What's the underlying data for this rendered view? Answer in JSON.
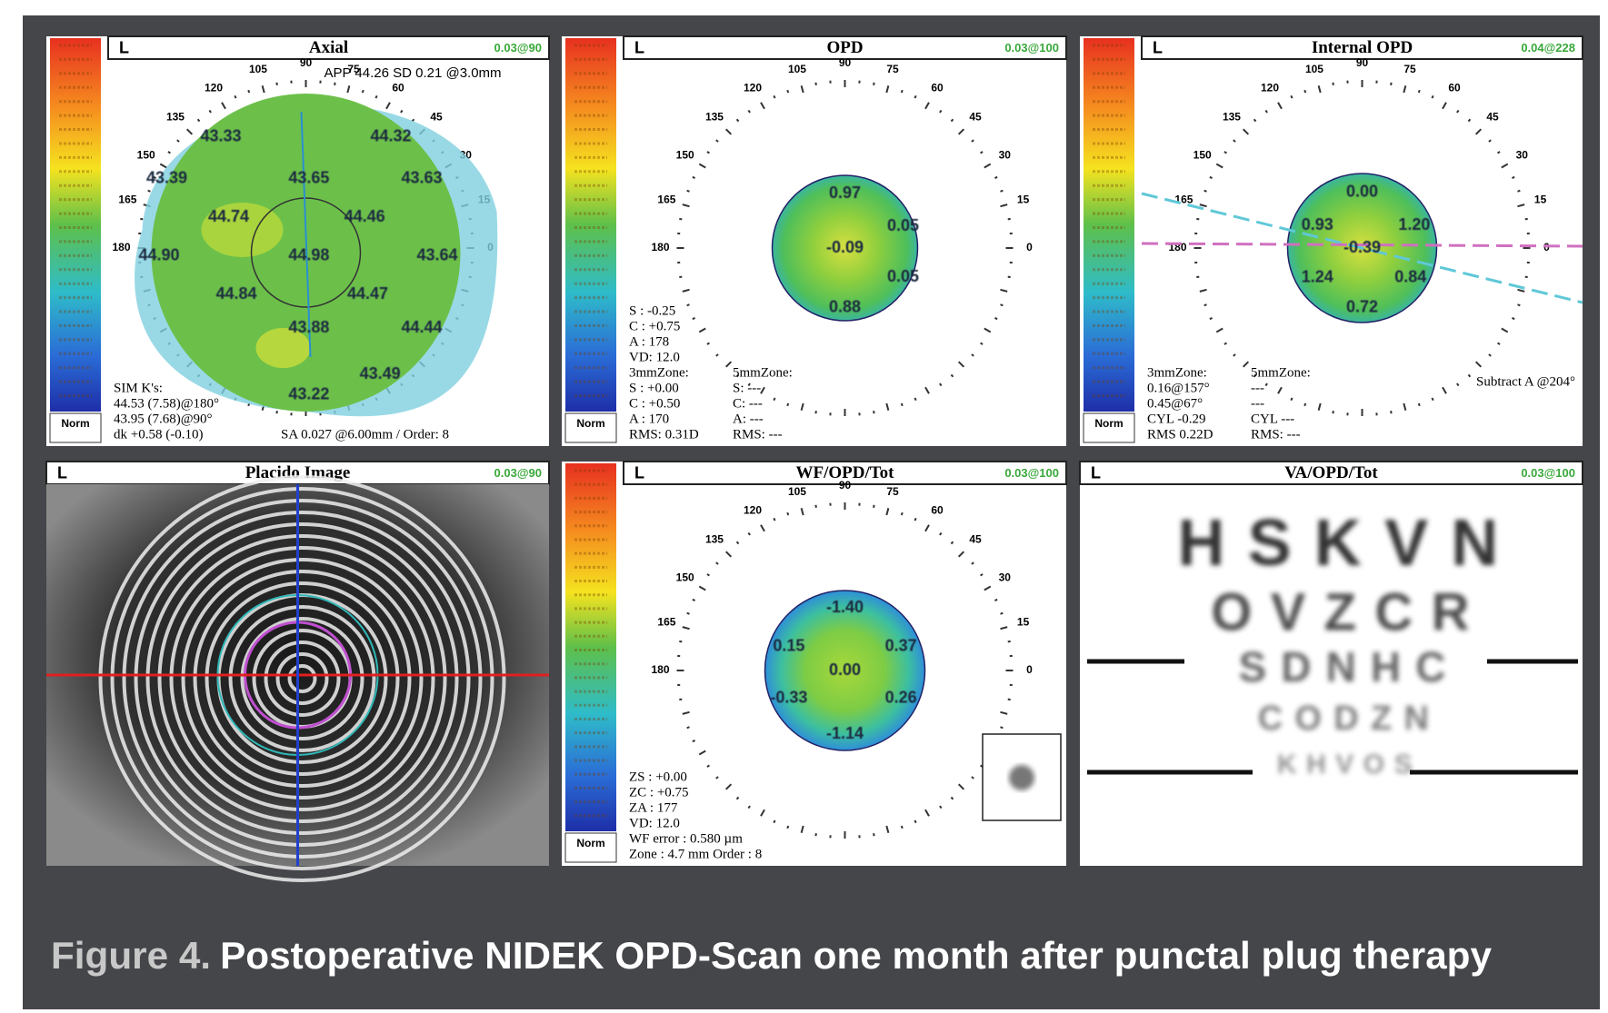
{
  "panels": [
    {
      "eye": "L",
      "title": "Axial",
      "scale": "0.03@90",
      "header_note": "APP 44.26 SD 0.21 @3.0mm",
      "map_values": [
        "43.33",
        "44.32",
        "43.39",
        "43.65",
        "43.63",
        "44.74",
        "44.46",
        "44.90",
        "44.98",
        "43.64",
        "44.84",
        "44.47",
        "43.88",
        "44.44",
        "43.49",
        "43.22"
      ],
      "notes": [
        "SIM K's:",
        "44.53 (7.58)@180°",
        "43.95 (7.68)@90°",
        "dk +0.58 (-0.10)"
      ],
      "notes2": [
        "SA 0.027 @6.00mm / Order: 8"
      ]
    },
    {
      "eye": "L",
      "title": "OPD",
      "scale": "0.03@100",
      "map_values": [
        "0.97",
        "0.05",
        "-0.09",
        "0.05",
        "0.88"
      ],
      "notes": [
        "S : -0.25",
        "C : +0.75",
        "A : 178",
        "VD: 12.0",
        "3mmZone:",
        "S : +0.00",
        "C : +0.50",
        "A : 170",
        "RMS: 0.31D"
      ],
      "notes2": [
        "5mmZone:",
        "S: ---",
        "C: ---",
        "A: ---",
        "RMS: ---"
      ]
    },
    {
      "eye": "L",
      "title": "Internal OPD",
      "scale": "0.04@228",
      "map_values": [
        "0.00",
        "0.93",
        "1.20",
        "-0.39",
        "1.24",
        "0.84",
        "0.72"
      ],
      "notes": [
        "3mmZone:",
        "0.16@157°",
        "0.45@67°",
        "CYL -0.29",
        "RMS 0.22D"
      ],
      "notes2": [
        "5mmZone:",
        "---",
        "---",
        "CYL ---",
        "RMS: ---"
      ],
      "side_note": "Subtract A @204°"
    },
    {
      "eye": "L",
      "title": "Placido Image",
      "scale": "0.03@90"
    },
    {
      "eye": "L",
      "title": "WF/OPD/Tot",
      "scale": "0.03@100",
      "map_values": [
        "-1.40",
        "0.15",
        "0.37",
        "0.00",
        "-0.33",
        "0.26",
        "-1.14"
      ],
      "notes": [
        "ZS : +0.00",
        "ZC : +0.75",
        "ZA : 177",
        "VD: 12.0",
        "WF error : 0.580 µm",
        "Zone : 4.7 mm Order : 8"
      ]
    },
    {
      "eye": "L",
      "title": "VA/OPD/Tot",
      "scale": "0.03@100",
      "chart_rows": [
        "HSKVN",
        "OVZCR",
        "SDNHC",
        "CODZN",
        "KHVOS"
      ]
    }
  ],
  "dial_labels": [
    0,
    15,
    30,
    45,
    60,
    75,
    90,
    105,
    120,
    135,
    150,
    165,
    180
  ],
  "norm_label": "Norm",
  "caption": {
    "label": "Figure 4.",
    "text": "Postoperative NIDEK OPD-Scan one month after punctal plug therapy"
  }
}
